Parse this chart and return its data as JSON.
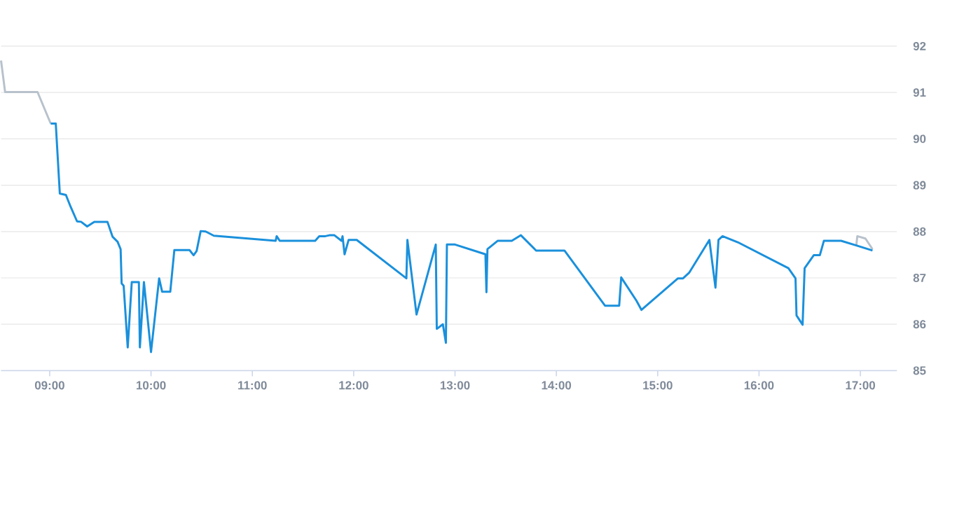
{
  "chart_data": {
    "type": "line",
    "xlim": [
      8.52,
      17.36
    ],
    "xticks": [
      {
        "value": 9,
        "label": "09:00"
      },
      {
        "value": 10,
        "label": "10:00"
      },
      {
        "value": 11,
        "label": "11:00"
      },
      {
        "value": 12,
        "label": "12:00"
      },
      {
        "value": 13,
        "label": "13:00"
      },
      {
        "value": 14,
        "label": "14:00"
      },
      {
        "value": 15,
        "label": "15:00"
      },
      {
        "value": 16,
        "label": "16:00"
      },
      {
        "value": 17,
        "label": "17:00"
      }
    ],
    "ylim": [
      85,
      92
    ],
    "yticks": [
      85,
      86,
      87,
      88,
      89,
      90,
      91,
      92
    ],
    "grid": "y",
    "series": [
      {
        "color": "#b8c2cc",
        "x": [
          8.52,
          8.56,
          8.88,
          9.01
        ],
        "values": [
          91.69,
          91.01,
          91.01,
          90.33
        ]
      },
      {
        "color": "#b8c2cc",
        "x": [
          16.96,
          16.97,
          17.05,
          17.12
        ],
        "values": [
          87.7,
          87.9,
          87.85,
          87.62
        ]
      },
      {
        "color": "#1a90dc",
        "x": [
          9.01,
          9.06,
          9.1,
          9.16,
          9.2,
          9.27,
          9.31,
          9.37,
          9.44,
          9.57,
          9.62,
          9.67,
          9.7,
          9.71,
          9.73,
          9.77,
          9.81,
          9.88,
          9.89,
          9.93,
          10.0,
          10.08,
          10.11,
          10.19,
          10.23,
          10.38,
          10.42,
          10.45,
          10.49,
          10.54,
          10.62,
          11.23,
          11.24,
          11.27,
          11.62,
          11.66,
          11.72,
          11.76,
          11.81,
          11.88,
          11.89,
          11.91,
          11.95,
          12.03,
          12.52,
          12.53,
          12.62,
          12.81,
          12.82,
          12.88,
          12.91,
          12.92,
          13.0,
          13.3,
          13.31,
          13.32,
          13.42,
          13.56,
          13.65,
          13.8,
          14.08,
          14.48,
          14.62,
          14.64,
          14.79,
          14.84,
          15.2,
          15.25,
          15.31,
          15.51,
          15.57,
          15.6,
          15.64,
          15.79,
          16.29,
          16.36,
          16.37,
          16.43,
          16.45,
          16.54,
          16.6,
          16.64,
          16.81,
          16.96,
          17.12
        ],
        "values": [
          90.33,
          90.33,
          88.82,
          88.79,
          88.57,
          88.22,
          88.21,
          88.11,
          88.21,
          88.21,
          87.89,
          87.78,
          87.62,
          86.88,
          86.83,
          85.5,
          86.91,
          86.91,
          85.5,
          86.91,
          85.4,
          86.99,
          86.7,
          86.7,
          87.6,
          87.6,
          87.49,
          87.58,
          88.01,
          88.0,
          87.91,
          87.8,
          87.9,
          87.8,
          87.8,
          87.9,
          87.9,
          87.92,
          87.92,
          87.8,
          87.9,
          87.51,
          87.82,
          87.82,
          86.99,
          87.82,
          86.21,
          87.72,
          85.9,
          86.0,
          85.6,
          87.72,
          87.72,
          87.51,
          86.69,
          87.62,
          87.8,
          87.8,
          87.92,
          87.59,
          87.59,
          86.4,
          86.4,
          87.01,
          86.51,
          86.31,
          86.99,
          86.99,
          87.11,
          87.82,
          86.79,
          87.82,
          87.9,
          87.77,
          87.21,
          86.99,
          86.19,
          85.99,
          87.21,
          87.49,
          87.49,
          87.8,
          87.8,
          87.7,
          87.59
        ]
      }
    ]
  }
}
